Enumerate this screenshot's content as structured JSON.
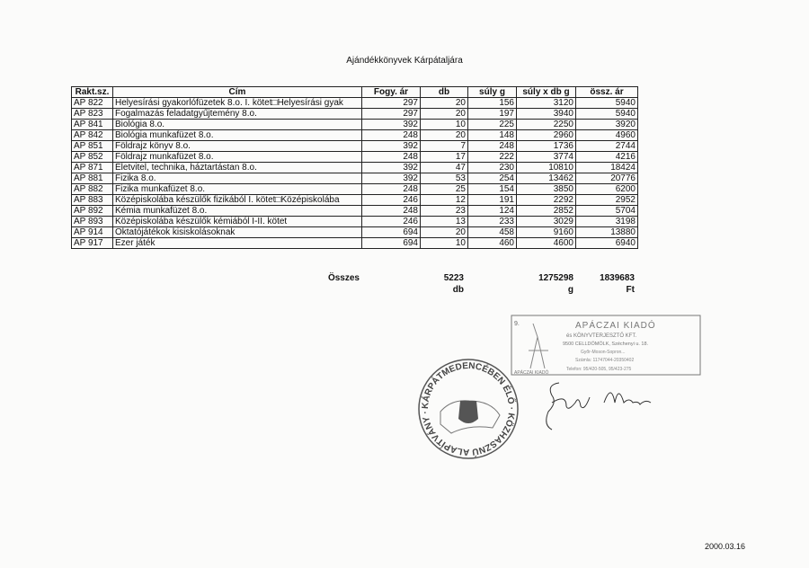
{
  "title": "Ajándékkönyvek Kárpátaljára",
  "table": {
    "headers": [
      "Rakt.sz.",
      "Cím",
      "Fogy. ár",
      "db",
      "súly g",
      "súly x db g",
      "össz. ár"
    ],
    "rows": [
      [
        "AP 822",
        "Helyesírási gyakorlófüzetek 8.o. I. kötet□Helyesírási gyak",
        "297",
        "20",
        "156",
        "3120",
        "5940"
      ],
      [
        "AP 823",
        "Fogalmazás feladatgyűjtemény 8.o.",
        "297",
        "20",
        "197",
        "3940",
        "5940"
      ],
      [
        "AP 841",
        "Biológia 8.o.",
        "392",
        "10",
        "225",
        "2250",
        "3920"
      ],
      [
        "AP 842",
        "Biológia munkafüzet 8.o.",
        "248",
        "20",
        "148",
        "2960",
        "4960"
      ],
      [
        "AP 851",
        "Földrajz könyv 8.o.",
        "392",
        "7",
        "248",
        "1736",
        "2744"
      ],
      [
        "AP 852",
        "Földrajz munkafüzet 8.o.",
        "248",
        "17",
        "222",
        "3774",
        "4216"
      ],
      [
        "AP 871",
        "Életvitel, technika, háztartástan 8.o.",
        "392",
        "47",
        "230",
        "10810",
        "18424"
      ],
      [
        "AP 881",
        "Fizika 8.o.",
        "392",
        "53",
        "254",
        "13462",
        "20776"
      ],
      [
        "AP 882",
        "Fizika munkafüzet 8.o.",
        "248",
        "25",
        "154",
        "3850",
        "6200"
      ],
      [
        "AP 883",
        "Középiskolába készülők fizikából I. kötet□Középiskolába",
        "246",
        "12",
        "191",
        "2292",
        "2952"
      ],
      [
        "AP 892",
        "Kémia munkafüzet 8.o.",
        "248",
        "23",
        "124",
        "2852",
        "5704"
      ],
      [
        "AP 893",
        "Középiskolába készülők kémiából I-II. kötet",
        "246",
        "13",
        "233",
        "3029",
        "3198"
      ],
      [
        "AP 914",
        "Oktatójátékok kisiskolásoknak",
        "694",
        "20",
        "458",
        "9160",
        "13880"
      ],
      [
        "AP 917",
        "Ezer játék",
        "694",
        "10",
        "460",
        "4600",
        "6940"
      ]
    ]
  },
  "totals": {
    "label": "Összes",
    "db": "5223",
    "db_unit": "db",
    "weight": "1275298",
    "weight_unit": "g",
    "price": "1839683",
    "price_unit": "Ft"
  },
  "stamp_publisher": {
    "number": "9.",
    "name": "APÁCZAI KIADÓ",
    "line1": "és KÖNYVTERJESZTŐ KFT.",
    "line2": "9500 CELLDÖMÖLK, Széchenyi u. 18.",
    "line3": "Győr-Moson-Sopron...",
    "line4": "Számla: 11747044-20350402",
    "line5": "Telefon: 95/420-505, 95/423-275",
    "logo": "APÁCZAI KIADÓ"
  },
  "stamp_round": {
    "text": "KÁRPÁTMEDENCÉBEN ÉLŐ MAGYAROKÉRT KÖZHASZNÚ ALAPÍTVÁNY"
  },
  "signature": "Gocla Mária",
  "date": "2000.03.16"
}
